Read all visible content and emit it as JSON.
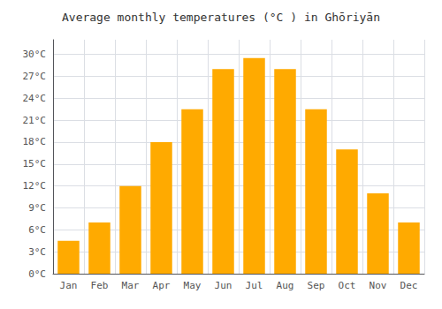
{
  "chart_data": {
    "type": "bar",
    "title": "Average monthly temperatures (°C ) in Ghōriyān",
    "categories": [
      "Jan",
      "Feb",
      "Mar",
      "Apr",
      "May",
      "Jun",
      "Jul",
      "Aug",
      "Sep",
      "Oct",
      "Nov",
      "Dec"
    ],
    "values": [
      4.5,
      7.0,
      12.0,
      18.0,
      22.5,
      28.0,
      29.5,
      28.0,
      22.5,
      17.0,
      11.0,
      7.0
    ],
    "color": "#FFAA00",
    "ylim": [
      0,
      32
    ],
    "yticks": [
      {
        "value": 0,
        "label": "0°C"
      },
      {
        "value": 3,
        "label": "3°C"
      },
      {
        "value": 6,
        "label": "6°C"
      },
      {
        "value": 9,
        "label": "9°C"
      },
      {
        "value": 12,
        "label": "12°C"
      },
      {
        "value": 15,
        "label": "15°C"
      },
      {
        "value": 18,
        "label": "18°C"
      },
      {
        "value": 21,
        "label": "21°C"
      },
      {
        "value": 24,
        "label": "24°C"
      },
      {
        "value": 27,
        "label": "27°C"
      },
      {
        "value": 30,
        "label": "30°C"
      }
    ],
    "grid": true
  }
}
